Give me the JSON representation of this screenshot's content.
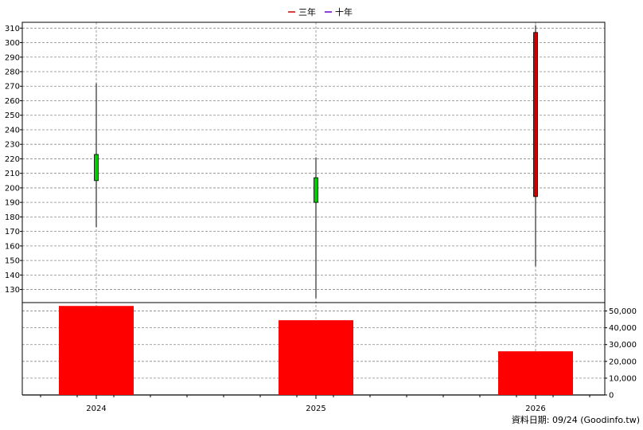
{
  "chart_data": {
    "type": "candlestick-with-volume",
    "legend": [
      {
        "label": "三年",
        "color": "#cc0000"
      },
      {
        "label": "十年",
        "color": "#6600cc"
      }
    ],
    "categories": [
      "2024",
      "2025",
      "2026"
    ],
    "price_axis": {
      "ylim": [
        121,
        314
      ],
      "ticks": [
        130,
        140,
        150,
        160,
        170,
        180,
        190,
        200,
        210,
        220,
        230,
        240,
        250,
        260,
        270,
        280,
        290,
        300,
        310
      ]
    },
    "volume_axis": {
      "ylim": [
        0,
        55000
      ],
      "ticks": [
        0,
        10000,
        20000,
        30000,
        40000,
        50000
      ],
      "tick_labels": [
        "0",
        "10,000",
        "20,000",
        "30,000",
        "40,000",
        "50,000"
      ]
    },
    "candles": [
      {
        "x": "2024",
        "open": 205,
        "close": 223,
        "high": 272,
        "low": 173,
        "color": "#00cc00"
      },
      {
        "x": "2025",
        "open": 190,
        "close": 207,
        "high": 221,
        "low": 124,
        "color": "#00cc00"
      },
      {
        "x": "2026",
        "open": 307,
        "close": 194,
        "high": 312,
        "low": 146,
        "color": "#cc0000"
      }
    ],
    "volume": [
      {
        "x": "2024",
        "value": 53000
      },
      {
        "x": "2025",
        "value": 44500
      },
      {
        "x": "2026",
        "value": 26000
      }
    ],
    "colors": {
      "volume_bar": "#ff0000",
      "grid": "#888888",
      "axis": "#000000"
    },
    "footer": "資料日期: 09/24  (Goodinfo.tw)"
  }
}
